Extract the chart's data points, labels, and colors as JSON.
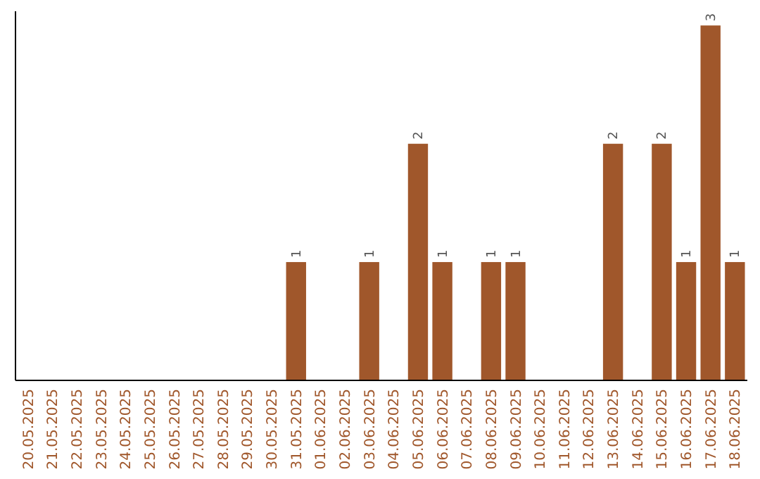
{
  "chart_data": {
    "type": "bar",
    "categories": [
      "20.05.2025",
      "21.05.2025",
      "22.05.2025",
      "23.05.2025",
      "24.05.2025",
      "25.05.2025",
      "26.05.2025",
      "27.05.2025",
      "28.05.2025",
      "29.05.2025",
      "30.05.2025",
      "31.05.2025",
      "01.06.2025",
      "02.06.2025",
      "03.06.2025",
      "04.06.2025",
      "05.06.2025",
      "06.06.2025",
      "07.06.2025",
      "08.06.2025",
      "09.06.2025",
      "10.06.2025",
      "11.06.2025",
      "12.06.2025",
      "13.06.2025",
      "14.06.2025",
      "15.06.2025",
      "16.06.2025",
      "17.06.2025",
      "18.06.2025"
    ],
    "values": [
      0,
      0,
      0,
      0,
      0,
      0,
      0,
      0,
      0,
      0,
      0,
      1,
      0,
      0,
      1,
      0,
      2,
      1,
      0,
      1,
      1,
      0,
      0,
      0,
      2,
      0,
      2,
      1,
      3,
      1
    ],
    "value_labels": [
      null,
      null,
      null,
      null,
      null,
      null,
      null,
      null,
      null,
      null,
      null,
      "1",
      null,
      null,
      "1",
      null,
      "2",
      "1",
      null,
      "1",
      "1",
      null,
      null,
      null,
      "2",
      null,
      "2",
      "1",
      "3",
      "1"
    ],
    "color": "#a0572b",
    "tick_labels": "x"
  }
}
